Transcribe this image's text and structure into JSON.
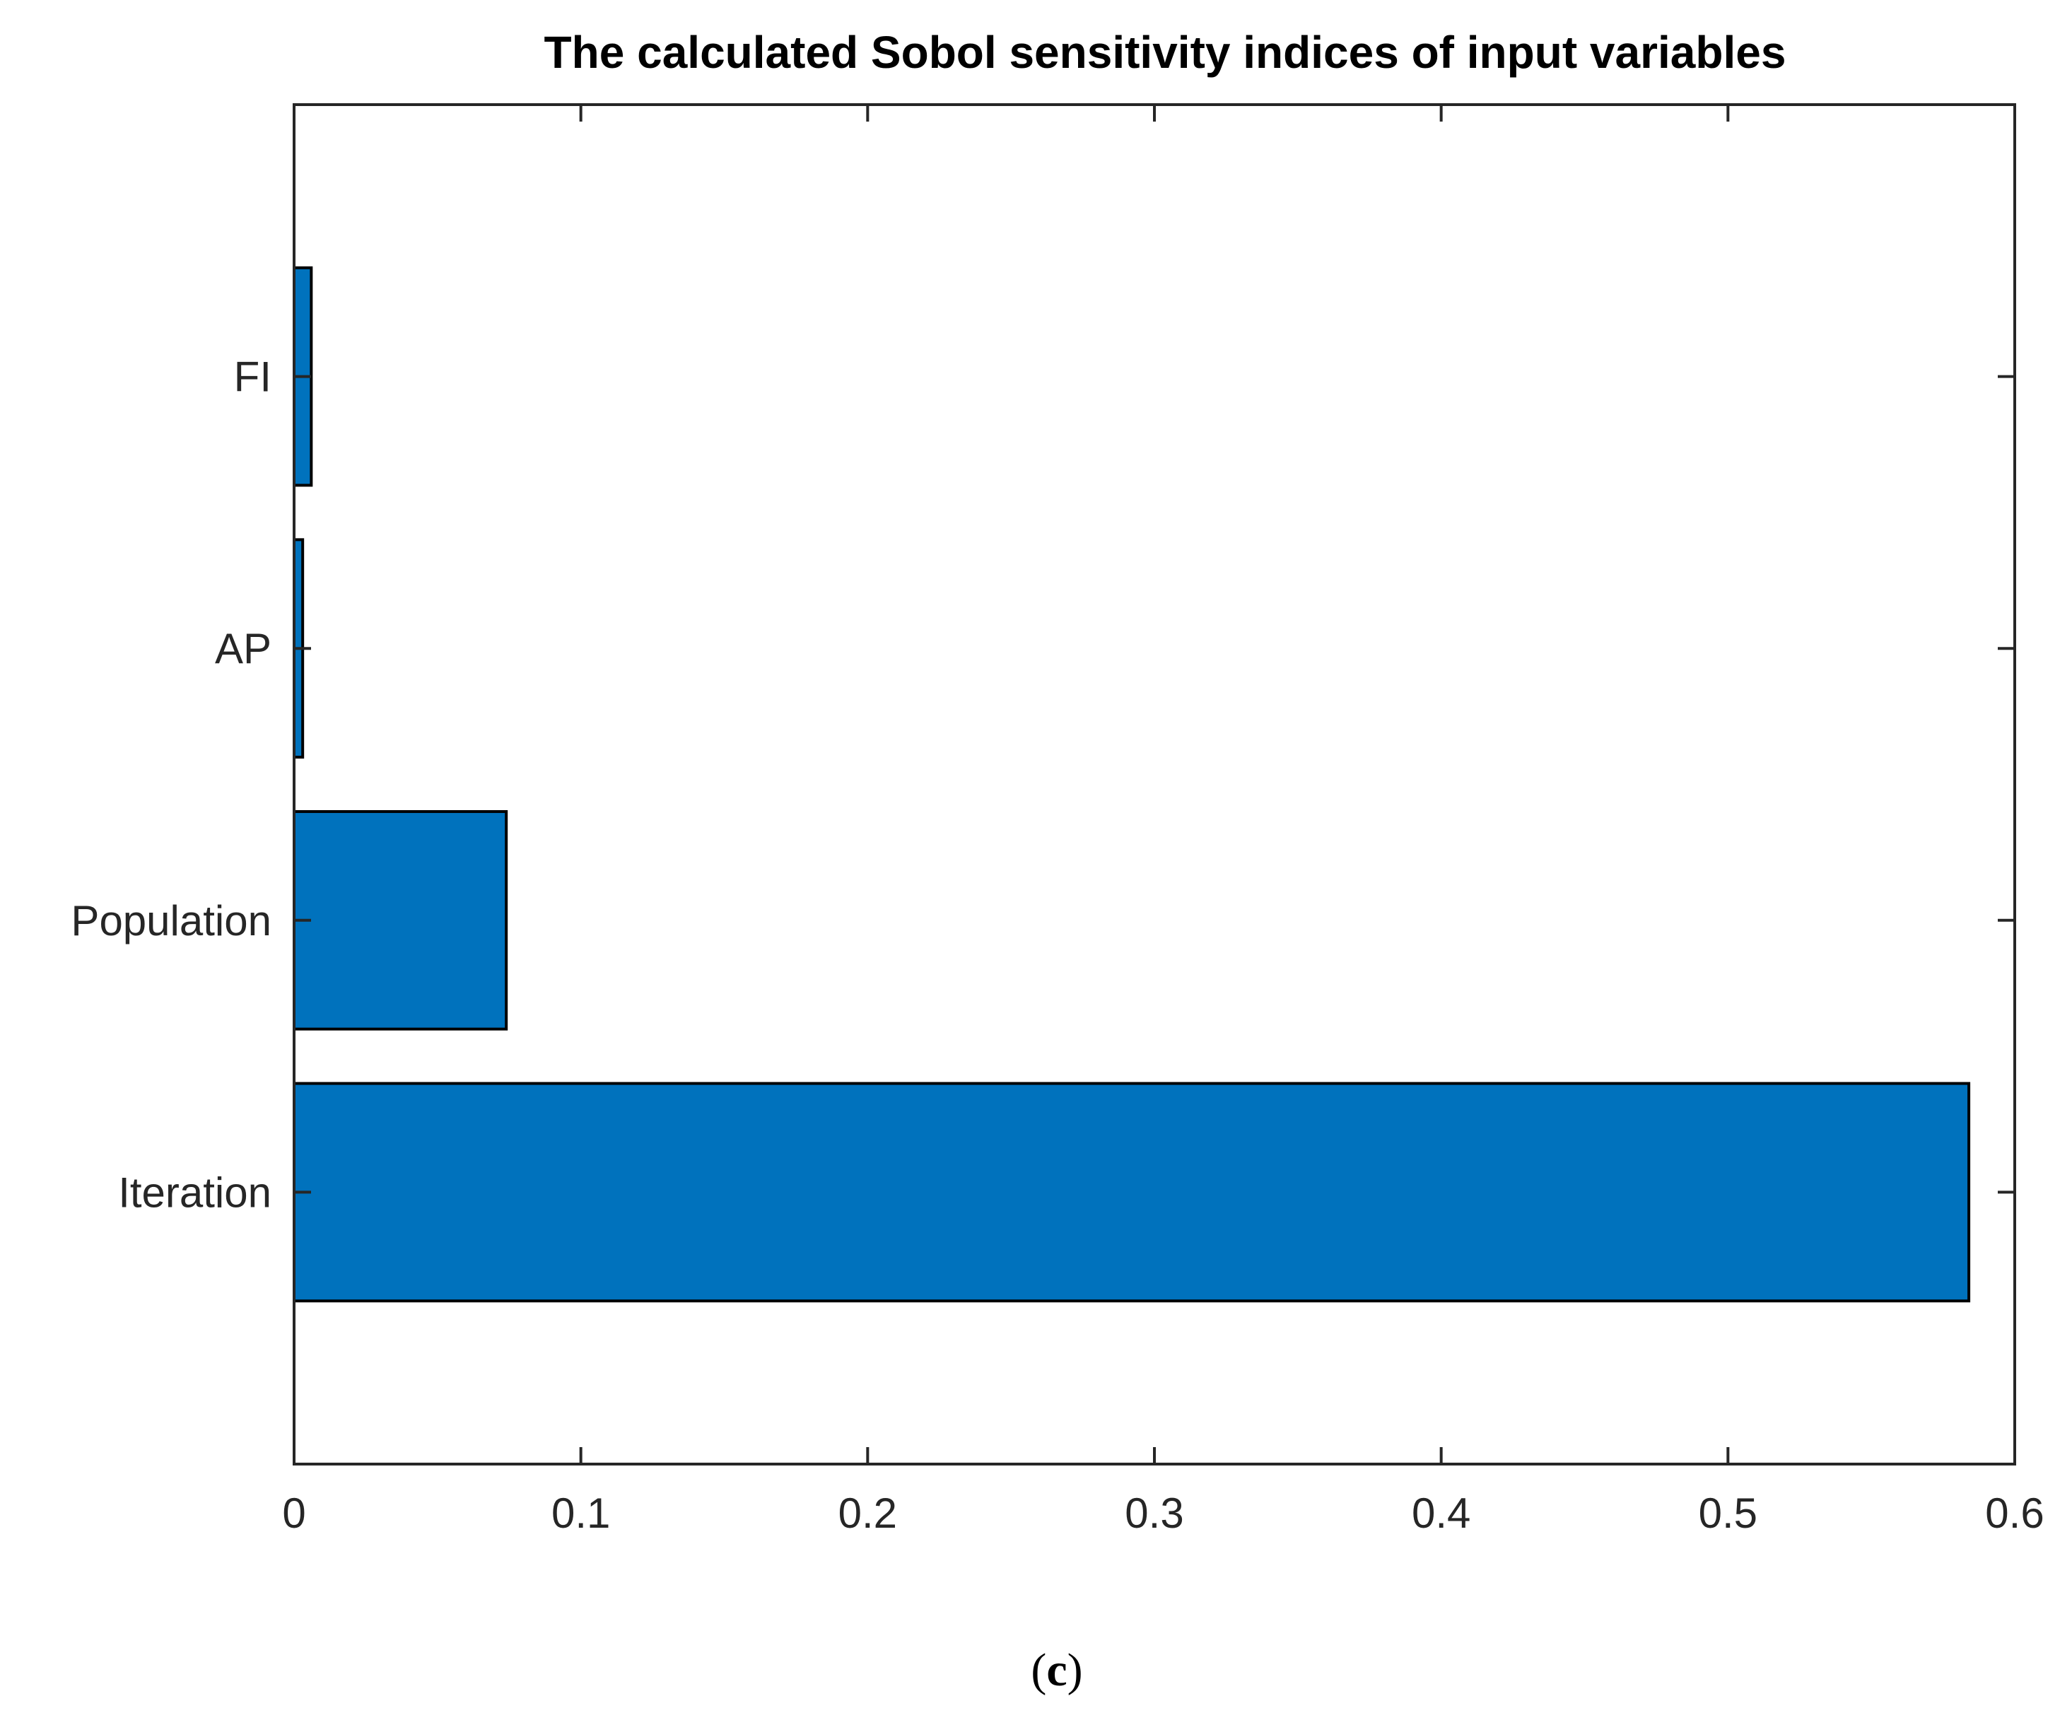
{
  "chart_data": {
    "type": "bar",
    "orientation": "horizontal",
    "title": "The calculated Sobol sensitivity indices of input variables",
    "categories": [
      "Iteration",
      "Population",
      "AP",
      "FI"
    ],
    "values": [
      0.584,
      0.074,
      0.003,
      0.006
    ],
    "xlabel": "",
    "ylabel": "",
    "xlim": [
      0,
      0.6
    ],
    "xticks": [
      "0",
      "0.1",
      "0.2",
      "0.3",
      "0.4",
      "0.5",
      "0.6"
    ],
    "grid": false,
    "bar_color": "#0072BD",
    "edge_color": "#000000"
  },
  "caption": {
    "open": "(",
    "letter": "c",
    "close": ")"
  }
}
